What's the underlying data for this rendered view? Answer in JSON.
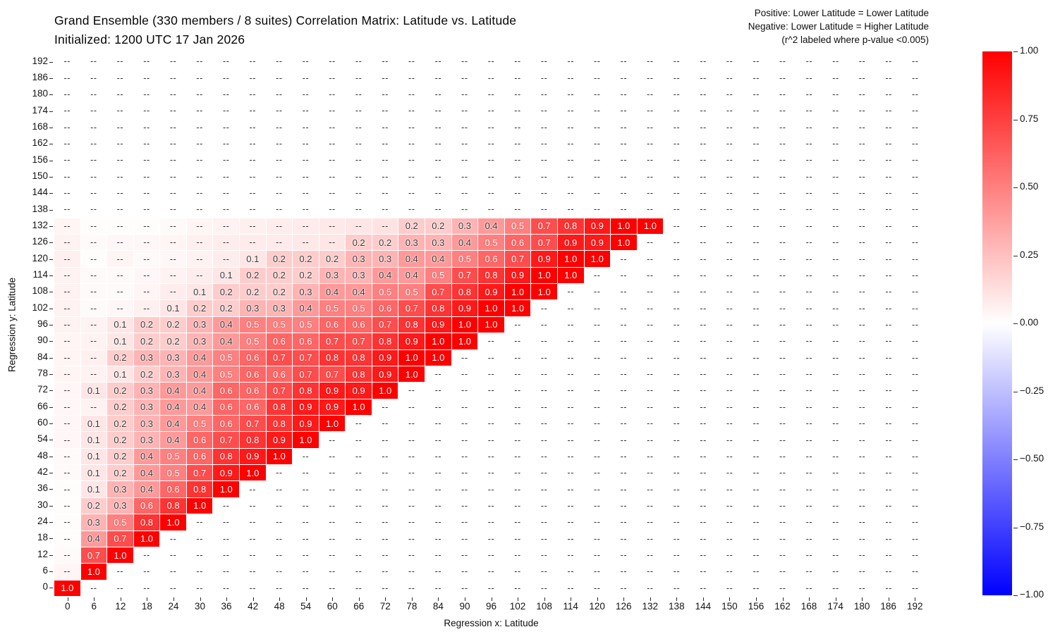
{
  "chart_data": {
    "type": "heatmap",
    "title": "Grand Ensemble (330 members / 8 suites) Correlation Matrix: Latitude vs. Latitude",
    "subtitle": "Initialized: 1200 UTC 17 Jan 2026",
    "annotation": [
      "Positive: Lower Latitude = Lower Latitude",
      "Negative: Lower Latitude = Higher Latitude",
      "(r^2 labeled where p-value <0.005)"
    ],
    "xlabel": "Regression x: Latitude",
    "ylabel": "Regression y: Latitude",
    "x_ticks": [
      0,
      6,
      12,
      18,
      24,
      30,
      36,
      42,
      48,
      54,
      60,
      66,
      72,
      78,
      84,
      90,
      96,
      102,
      108,
      114,
      120,
      126,
      132,
      138,
      144,
      150,
      156,
      162,
      168,
      174,
      180,
      186,
      192
    ],
    "y_ticks": [
      0,
      6,
      12,
      18,
      24,
      30,
      36,
      42,
      48,
      54,
      60,
      66,
      72,
      78,
      84,
      90,
      96,
      102,
      108,
      114,
      120,
      126,
      132,
      138,
      144,
      150,
      156,
      162,
      168,
      174,
      180,
      186,
      192
    ],
    "missing_label": "--",
    "vmin": -1,
    "vmax": 1,
    "grid": true,
    "legend_position": "right-colorbar",
    "colormap": {
      "name": "bwr",
      "positive": "#ff0000",
      "zero": "#ffffff",
      "negative": "#0000ff"
    },
    "colorbar_ticks": [
      "1.00",
      "0.75",
      "0.50",
      "0.25",
      "0.00",
      "−0.25",
      "−0.50",
      "−0.75",
      "−1.00"
    ],
    "rows": [
      {
        "y": 0,
        "start": 0,
        "values": [
          1.0
        ],
        "pre": []
      },
      {
        "y": 6,
        "start": 6,
        "values": [
          1.0
        ],
        "pre": [
          0.04
        ]
      },
      {
        "y": 12,
        "start": 6,
        "values": [
          0.7,
          1.0
        ],
        "pre": [
          0.02
        ]
      },
      {
        "y": 18,
        "start": 6,
        "values": [
          0.4,
          0.7,
          1.0
        ],
        "pre": [
          0.01
        ]
      },
      {
        "y": 24,
        "start": 6,
        "values": [
          0.3,
          0.5,
          0.8,
          1.0
        ],
        "pre": [
          0.01
        ]
      },
      {
        "y": 30,
        "start": 6,
        "values": [
          0.2,
          0.3,
          0.6,
          0.8,
          1.0
        ],
        "pre": [
          0.01
        ]
      },
      {
        "y": 36,
        "start": 6,
        "values": [
          0.1,
          0.3,
          0.4,
          0.6,
          0.8,
          1.0
        ],
        "pre": [
          0.01
        ]
      },
      {
        "y": 42,
        "start": 6,
        "values": [
          0.1,
          0.2,
          0.4,
          0.5,
          0.7,
          0.9,
          1.0
        ],
        "pre": [
          0.02
        ]
      },
      {
        "y": 48,
        "start": 6,
        "values": [
          0.1,
          0.2,
          0.4,
          0.5,
          0.6,
          0.8,
          0.9,
          1.0
        ],
        "pre": [
          0.02
        ]
      },
      {
        "y": 54,
        "start": 6,
        "values": [
          0.1,
          0.2,
          0.3,
          0.4,
          0.6,
          0.7,
          0.8,
          0.9,
          1.0
        ],
        "pre": [
          0.03
        ]
      },
      {
        "y": 60,
        "start": 6,
        "values": [
          0.1,
          0.2,
          0.3,
          0.4,
          0.5,
          0.6,
          0.7,
          0.8,
          0.9,
          1.0
        ],
        "pre": [
          0.03
        ]
      },
      {
        "y": 66,
        "start": 12,
        "values": [
          0.2,
          0.3,
          0.4,
          0.4,
          0.6,
          0.6,
          0.8,
          0.9,
          0.9,
          1.0
        ],
        "pre": [
          0.03,
          0.05
        ]
      },
      {
        "y": 72,
        "start": 6,
        "values": [
          0.1,
          0.2,
          0.3,
          0.4,
          0.4,
          0.6,
          0.6,
          0.7,
          0.8,
          0.9,
          0.9,
          1.0
        ],
        "pre": [
          0.03
        ]
      },
      {
        "y": 78,
        "start": 12,
        "values": [
          0.1,
          0.2,
          0.3,
          0.4,
          0.5,
          0.6,
          0.6,
          0.7,
          0.7,
          0.8,
          0.9,
          1.0
        ],
        "pre": [
          0.04,
          0.05
        ]
      },
      {
        "y": 84,
        "start": 12,
        "values": [
          0.2,
          0.3,
          0.3,
          0.4,
          0.5,
          0.6,
          0.7,
          0.7,
          0.8,
          0.8,
          0.9,
          1.0,
          1.0
        ],
        "pre": [
          0.04,
          0.06
        ]
      },
      {
        "y": 90,
        "start": 12,
        "values": [
          0.1,
          0.2,
          0.2,
          0.3,
          0.4,
          0.5,
          0.6,
          0.6,
          0.7,
          0.7,
          0.8,
          0.9,
          1.0,
          1.0
        ],
        "pre": [
          0.04,
          0.05
        ]
      },
      {
        "y": 96,
        "start": 12,
        "values": [
          0.1,
          0.2,
          0.2,
          0.3,
          0.4,
          0.5,
          0.5,
          0.5,
          0.6,
          0.6,
          0.7,
          0.8,
          0.9,
          1.0,
          1.0
        ],
        "pre": [
          0.05,
          0.05
        ]
      },
      {
        "y": 102,
        "start": 24,
        "values": [
          0.1,
          0.2,
          0.2,
          0.3,
          0.3,
          0.4,
          0.5,
          0.5,
          0.6,
          0.7,
          0.8,
          0.9,
          1.0,
          1.0
        ],
        "pre": [
          0.05,
          0.02,
          0.03,
          0.06
        ]
      },
      {
        "y": 108,
        "start": 30,
        "values": [
          0.1,
          0.2,
          0.2,
          0.2,
          0.3,
          0.4,
          0.4,
          0.5,
          0.5,
          0.7,
          0.8,
          0.9,
          1.0,
          1.0
        ],
        "pre": [
          0.05,
          0.02,
          0.02,
          0.04,
          0.07
        ]
      },
      {
        "y": 114,
        "start": 36,
        "values": [
          0.1,
          0.2,
          0.2,
          0.2,
          0.3,
          0.3,
          0.4,
          0.4,
          0.5,
          0.7,
          0.8,
          0.9,
          1.0,
          1.0
        ],
        "pre": [
          0.05,
          0.02,
          0.02,
          0.03,
          0.05,
          0.07
        ]
      },
      {
        "y": 120,
        "start": 42,
        "values": [
          0.1,
          0.2,
          0.2,
          0.2,
          0.3,
          0.3,
          0.4,
          0.4,
          0.5,
          0.6,
          0.7,
          0.9,
          1.0,
          1.0
        ],
        "pre": [
          0.06,
          0.01,
          0.04,
          0.02,
          0.03,
          0.05,
          0.07
        ]
      },
      {
        "y": 126,
        "start": 66,
        "values": [
          0.2,
          0.2,
          0.3,
          0.3,
          0.4,
          0.5,
          0.6,
          0.7,
          0.9,
          0.9,
          1.0
        ],
        "pre": [
          0.05,
          0.02,
          0.03,
          0.03,
          0.04,
          0.06,
          0.07,
          0.08,
          0.08,
          0.09,
          0.1
        ]
      },
      {
        "y": 132,
        "start": 78,
        "values": [
          0.2,
          0.2,
          0.3,
          0.4,
          0.5,
          0.7,
          0.8,
          0.9,
          1.0,
          1.0
        ],
        "pre": [
          0.04,
          0.01,
          0.01,
          0.01,
          0.02,
          0.04,
          0.05,
          0.06,
          0.07,
          0.08,
          0.09,
          0.1,
          0.11
        ]
      },
      {
        "y": 138,
        "start": null,
        "values": [],
        "pre": []
      },
      {
        "y": 144,
        "start": null,
        "values": [],
        "pre": []
      },
      {
        "y": 150,
        "start": null,
        "values": [],
        "pre": []
      },
      {
        "y": 156,
        "start": null,
        "values": [],
        "pre": []
      },
      {
        "y": 162,
        "start": null,
        "values": [],
        "pre": []
      },
      {
        "y": 168,
        "start": null,
        "values": [],
        "pre": []
      },
      {
        "y": 174,
        "start": null,
        "values": [],
        "pre": []
      },
      {
        "y": 180,
        "start": null,
        "values": [],
        "pre": []
      },
      {
        "y": 186,
        "start": null,
        "values": [],
        "pre": []
      },
      {
        "y": 192,
        "start": null,
        "values": [],
        "pre": []
      }
    ]
  }
}
